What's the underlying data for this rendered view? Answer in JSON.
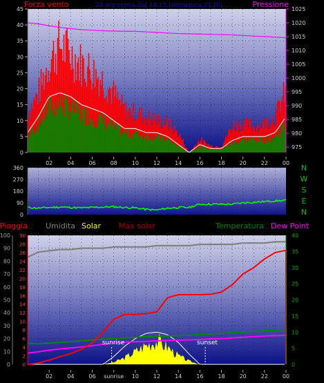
{
  "header1": {
    "wind": "Forza vento",
    "date_range": "24 ore prima dal 14:15 (domenica 21 Di)",
    "pressure": "Pressione"
  },
  "header2": {
    "rain": "Pioggia",
    "humidity": "Umidita",
    "solar": "Solar",
    "maxsolar": "Max solar",
    "temperature": "Temperatura",
    "dewpoint": "Dew Point"
  },
  "compass": [
    "N",
    "W",
    "S",
    "E",
    "N"
  ],
  "sun": {
    "sunrise": "sunrise",
    "sunset": "sunset"
  },
  "x_ticks": [
    "02",
    "04",
    "06",
    "08",
    "10",
    "12",
    "14",
    "16",
    "18",
    "20",
    "22",
    "00"
  ],
  "x_ticks_bottom": [
    "02",
    "04",
    "06",
    "sunrise",
    "10",
    "12",
    "14",
    "16",
    "18",
    "20",
    "22",
    "00"
  ],
  "colors": {
    "wind_gust": "#ff0000",
    "wind_avg": "#008800",
    "wind_line": "#ffffff",
    "pressure": "#ff00ff",
    "direction": "#00ff00",
    "rain": "#ff0000",
    "humidity": "#808080",
    "solar": "#ffff00",
    "temperature": "#008800",
    "dewpoint": "#ff00ff"
  },
  "chart_data": [
    {
      "type": "area",
      "title": "",
      "ylim_left": [
        0,
        45
      ],
      "yticks_left": [
        0,
        5,
        10,
        15,
        20,
        25,
        30,
        35,
        40,
        45
      ],
      "ylim_right": [
        973,
        1025
      ],
      "yticks_right": [
        975,
        980,
        985,
        990,
        995,
        1000,
        1005,
        1010,
        1015,
        1020,
        1025
      ],
      "grid": true,
      "x_hours": [
        0,
        1,
        2,
        3,
        4,
        5,
        6,
        7,
        8,
        9,
        10,
        11,
        12,
        13,
        14,
        15,
        16,
        17,
        18,
        19,
        20,
        21,
        22,
        23,
        24
      ],
      "series": [
        {
          "name": "Forza vento",
          "role": "gust",
          "values": [
            12,
            18,
            28,
            33,
            30,
            27,
            25,
            22,
            18,
            13,
            12,
            11,
            10,
            9,
            6,
            0,
            4,
            2,
            2,
            8,
            9,
            8,
            9,
            11,
            19
          ]
        },
        {
          "name": "Forza vento",
          "role": "avg",
          "values": [
            5,
            9,
            14,
            15,
            14,
            12,
            11,
            10,
            8,
            6,
            6,
            5,
            5,
            4,
            2,
            0,
            2,
            1,
            1,
            3,
            4,
            4,
            4,
            5,
            9
          ]
        },
        {
          "name": "Pressione",
          "values": [
            1020,
            1019.6,
            1018.9,
            1018.3,
            1017.9,
            1017.5,
            1017.3,
            1017.1,
            1017,
            1016.9,
            1016.9,
            1016.7,
            1016.5,
            1016.3,
            1016.1,
            1016,
            1015.9,
            1015.8,
            1015.7,
            1015.6,
            1015.4,
            1015.2,
            1015,
            1014.8,
            1014.6
          ]
        }
      ]
    },
    {
      "type": "line",
      "title": "",
      "ylim": [
        0,
        360
      ],
      "yticks": [
        0,
        90,
        180,
        270,
        360
      ],
      "grid": true,
      "x_hours": [
        0,
        1,
        2,
        3,
        4,
        5,
        6,
        7,
        8,
        9,
        10,
        11,
        12,
        13,
        14,
        15,
        16,
        17,
        18,
        19,
        20,
        21,
        22,
        23,
        24
      ],
      "series": [
        {
          "name": "direction",
          "values": [
            55,
            50,
            55,
            58,
            55,
            52,
            55,
            58,
            60,
            55,
            52,
            40,
            35,
            50,
            55,
            55,
            80,
            80,
            80,
            80,
            90,
            95,
            100,
            105,
            110
          ]
        }
      ]
    },
    {
      "type": "line",
      "title": "",
      "ylim_humidity": [
        0,
        100
      ],
      "yticks_humidity": [
        0,
        10,
        20,
        30,
        40,
        50,
        60,
        70,
        80,
        90,
        100
      ],
      "ylim_rain": [
        0,
        30
      ],
      "yticks_rain": [
        0,
        2,
        4,
        6,
        8,
        10,
        12,
        14,
        16,
        18,
        20,
        22,
        24,
        26,
        28,
        30
      ],
      "ylim_temp": [
        0,
        40
      ],
      "yticks_temp": [
        0,
        5,
        10,
        15,
        20,
        25,
        30,
        35,
        40
      ],
      "grid": true,
      "x_hours": [
        0,
        1,
        2,
        3,
        4,
        5,
        6,
        7,
        8,
        9,
        10,
        11,
        12,
        13,
        14,
        15,
        16,
        17,
        18,
        19,
        20,
        21,
        22,
        23,
        24
      ],
      "series": [
        {
          "name": "Pioggia",
          "values": [
            0,
            0.3,
            1.0,
            1.8,
            2.5,
            3.5,
            5.0,
            7.5,
            10.5,
            11.6,
            11.6,
            11.8,
            12.2,
            15.5,
            16.2,
            16.2,
            16.2,
            16.3,
            16.8,
            18.5,
            21.0,
            22.5,
            24.5,
            26.0,
            26.5
          ]
        },
        {
          "name": "Umidita",
          "values": [
            83,
            87,
            88,
            89,
            89,
            90,
            90,
            90,
            91,
            91,
            91,
            91,
            92,
            92,
            92,
            92,
            93,
            93,
            93,
            93,
            94,
            94,
            94,
            95,
            95
          ]
        },
        {
          "name": "Temperatura",
          "values": [
            6.5,
            6.4,
            6.6,
            6.8,
            7.0,
            7.3,
            7.6,
            7.8,
            8.0,
            8.2,
            8.4,
            8.6,
            8.7,
            8.8,
            8.9,
            9.0,
            9.2,
            9.4,
            9.6,
            9.8,
            10.0,
            10.2,
            10.4,
            10.6,
            10.8
          ]
        },
        {
          "name": "Dew Point",
          "values": [
            3.5,
            3.9,
            4.4,
            4.8,
            5.1,
            5.4,
            5.8,
            6.2,
            6.6,
            6.9,
            7.0,
            7.1,
            7.3,
            7.4,
            7.5,
            7.6,
            7.7,
            7.9,
            8.0,
            8.2,
            8.4,
            8.6,
            8.8,
            8.9,
            9.0
          ]
        },
        {
          "name": "Solar",
          "values": [
            0,
            0,
            0,
            0,
            0,
            0,
            0,
            0,
            2,
            6,
            12,
            18,
            22,
            16,
            8,
            3,
            0,
            0,
            0,
            0,
            0,
            0,
            0,
            0,
            0
          ]
        },
        {
          "name": "Max solar",
          "values": [
            0,
            0,
            0,
            0,
            0,
            0,
            0,
            0,
            6,
            14,
            20,
            24,
            25,
            23,
            17,
            8,
            0,
            0,
            0,
            0,
            0,
            0,
            0,
            0,
            0
          ]
        }
      ]
    }
  ]
}
